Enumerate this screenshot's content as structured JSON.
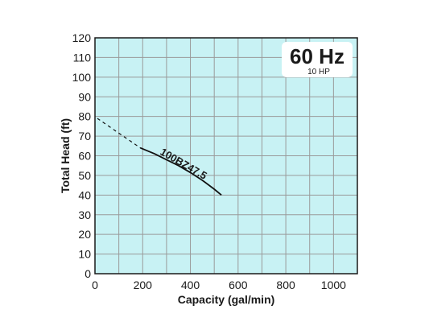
{
  "chart_data": {
    "type": "line",
    "xlabel": "Capacity (gal/min)",
    "ylabel": "Total Head (ft)",
    "xlim": [
      0,
      1100
    ],
    "ylim": [
      0,
      120
    ],
    "x_ticks": [
      0,
      200,
      400,
      600,
      800,
      1000
    ],
    "x_tick_labels": [
      "0",
      "200",
      "400",
      "600",
      "800",
      "1000"
    ],
    "y_ticks": [
      0,
      10,
      20,
      30,
      40,
      50,
      60,
      70,
      80,
      90,
      100,
      110,
      120
    ],
    "y_tick_labels": [
      "0",
      "10",
      "20",
      "30",
      "40",
      "50",
      "60",
      "70",
      "80",
      "90",
      "100",
      "110",
      "120"
    ],
    "grid": true,
    "plot_background": "#c8f2f4",
    "grid_color": "#9a9a9a",
    "line_color": "#111111",
    "series": [
      {
        "name": "100BZ47.5",
        "dashed_segment": [
          {
            "x": 10,
            "y": 79
          },
          {
            "x": 190,
            "y": 64
          }
        ],
        "solid_segment": [
          {
            "x": 190,
            "y": 64
          },
          {
            "x": 250,
            "y": 61
          },
          {
            "x": 300,
            "y": 58
          },
          {
            "x": 350,
            "y": 55
          },
          {
            "x": 400,
            "y": 51.5
          },
          {
            "x": 450,
            "y": 47.5
          },
          {
            "x": 500,
            "y": 43
          },
          {
            "x": 530,
            "y": 40
          }
        ]
      }
    ],
    "annotation": {
      "frequency": "60 Hz",
      "power": "10 HP"
    }
  }
}
